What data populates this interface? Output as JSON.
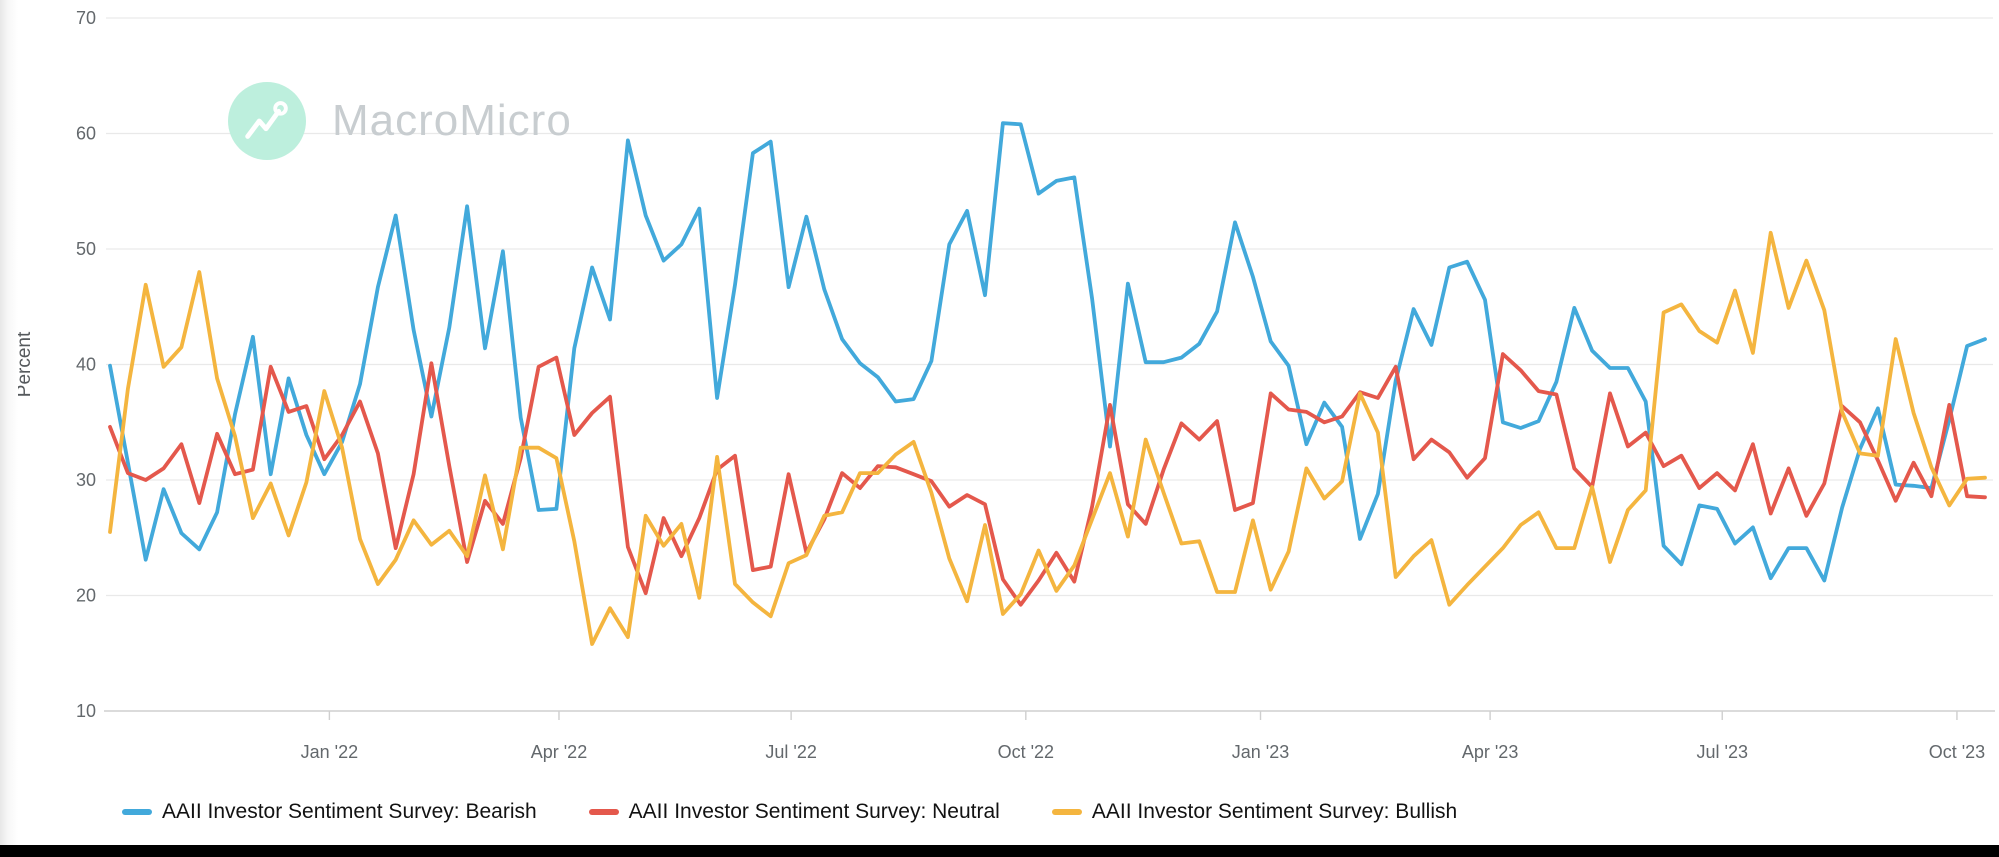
{
  "watermark": {
    "brand": "MacroMicro"
  },
  "y_axis": {
    "label": "Percent"
  },
  "chart_data": {
    "type": "line",
    "title": "AAII Investor Sentiment Survey",
    "ylabel": "Percent",
    "ylim": [
      10,
      70
    ],
    "yticks": [
      10,
      20,
      30,
      40,
      50,
      60,
      70
    ],
    "grid": "horizontal",
    "legend_position": "bottom",
    "xticks": [
      {
        "label": "Jan '22",
        "date": "2022-01-01"
      },
      {
        "label": "Apr '22",
        "date": "2022-04-01"
      },
      {
        "label": "Jul '22",
        "date": "2022-07-01"
      },
      {
        "label": "Oct '22",
        "date": "2022-10-01"
      },
      {
        "label": "Jan '23",
        "date": "2023-01-01"
      },
      {
        "label": "Apr '23",
        "date": "2023-04-01"
      },
      {
        "label": "Jul '23",
        "date": "2023-07-01"
      },
      {
        "label": "Oct '23",
        "date": "2023-10-01"
      }
    ],
    "x": [
      "2021-10-07",
      "2021-10-14",
      "2021-10-21",
      "2021-10-28",
      "2021-11-04",
      "2021-11-11",
      "2021-11-18",
      "2021-11-25",
      "2021-12-02",
      "2021-12-09",
      "2021-12-16",
      "2021-12-23",
      "2021-12-30",
      "2022-01-06",
      "2022-01-13",
      "2022-01-20",
      "2022-01-27",
      "2022-02-03",
      "2022-02-10",
      "2022-02-17",
      "2022-02-24",
      "2022-03-03",
      "2022-03-10",
      "2022-03-17",
      "2022-03-24",
      "2022-03-31",
      "2022-04-07",
      "2022-04-14",
      "2022-04-21",
      "2022-04-28",
      "2022-05-05",
      "2022-05-12",
      "2022-05-19",
      "2022-05-26",
      "2022-06-02",
      "2022-06-09",
      "2022-06-16",
      "2022-06-23",
      "2022-06-30",
      "2022-07-07",
      "2022-07-14",
      "2022-07-21",
      "2022-07-28",
      "2022-08-04",
      "2022-08-11",
      "2022-08-18",
      "2022-08-25",
      "2022-09-01",
      "2022-09-08",
      "2022-09-15",
      "2022-09-22",
      "2022-09-29",
      "2022-10-06",
      "2022-10-13",
      "2022-10-20",
      "2022-10-27",
      "2022-11-03",
      "2022-11-10",
      "2022-11-17",
      "2022-11-24",
      "2022-12-01",
      "2022-12-08",
      "2022-12-15",
      "2022-12-22",
      "2022-12-29",
      "2023-01-05",
      "2023-01-12",
      "2023-01-19",
      "2023-01-26",
      "2023-02-02",
      "2023-02-09",
      "2023-02-16",
      "2023-02-23",
      "2023-03-02",
      "2023-03-09",
      "2023-03-16",
      "2023-03-23",
      "2023-03-30",
      "2023-04-06",
      "2023-04-13",
      "2023-04-20",
      "2023-04-27",
      "2023-05-04",
      "2023-05-11",
      "2023-05-18",
      "2023-05-25",
      "2023-06-01",
      "2023-06-08",
      "2023-06-15",
      "2023-06-22",
      "2023-06-29",
      "2023-07-06",
      "2023-07-13",
      "2023-07-20",
      "2023-07-27",
      "2023-08-03",
      "2023-08-10",
      "2023-08-17",
      "2023-08-24",
      "2023-08-31",
      "2023-09-07",
      "2023-09-14",
      "2023-09-21",
      "2023-09-28",
      "2023-10-05",
      "2023-10-12"
    ],
    "series": [
      {
        "name": "AAII Investor Sentiment Survey: Bearish",
        "color": "#42a9db",
        "values": [
          39.9,
          31.5,
          23.1,
          29.2,
          25.4,
          24.0,
          27.2,
          35.7,
          42.4,
          30.5,
          38.8,
          33.9,
          30.5,
          33.3,
          38.3,
          46.7,
          52.9,
          43.0,
          35.5,
          43.2,
          53.7,
          41.4,
          49.8,
          35.4,
          27.4,
          27.5,
          41.4,
          48.4,
          43.9,
          59.4,
          52.9,
          49.0,
          50.4,
          53.5,
          37.1,
          46.9,
          58.3,
          59.3,
          46.7,
          52.8,
          46.5,
          42.2,
          40.1,
          38.9,
          36.8,
          37.0,
          40.3,
          50.4,
          53.3,
          46.0,
          60.9,
          60.8,
          54.8,
          55.9,
          56.2,
          45.7,
          32.9,
          47.0,
          40.2,
          40.2,
          40.6,
          41.8,
          44.6,
          52.3,
          47.6,
          42.0,
          39.9,
          33.1,
          36.7,
          34.6,
          24.9,
          28.8,
          38.6,
          44.8,
          41.7,
          48.4,
          48.9,
          45.6,
          35.0,
          34.5,
          35.1,
          38.5,
          44.9,
          41.2,
          39.7,
          39.7,
          36.8,
          24.3,
          22.7,
          27.8,
          27.5,
          24.5,
          25.9,
          21.5,
          24.1,
          24.1,
          21.3,
          27.6,
          32.7,
          36.2,
          29.6,
          29.5,
          29.3,
          35.2,
          41.6,
          42.2
        ]
      },
      {
        "name": "AAII Investor Sentiment Survey: Neutral",
        "color": "#e4584c",
        "values": [
          34.6,
          30.6,
          30.0,
          31.0,
          33.1,
          28.0,
          34.0,
          30.5,
          30.9,
          39.8,
          35.9,
          36.4,
          31.8,
          33.9,
          36.8,
          32.3,
          24.1,
          30.5,
          40.1,
          31.2,
          22.9,
          28.2,
          26.2,
          31.9,
          39.8,
          40.6,
          33.9,
          35.8,
          37.2,
          24.2,
          20.2,
          26.7,
          23.4,
          26.7,
          30.9,
          32.1,
          22.2,
          22.5,
          30.5,
          23.7,
          26.6,
          30.6,
          29.3,
          31.2,
          31.1,
          30.5,
          29.9,
          27.7,
          28.7,
          27.9,
          21.4,
          19.2,
          21.3,
          23.7,
          21.2,
          27.7,
          36.5,
          27.9,
          26.2,
          30.9,
          34.9,
          33.5,
          35.1,
          27.4,
          28.0,
          37.5,
          36.1,
          35.9,
          35.0,
          35.5,
          37.6,
          37.1,
          39.8,
          31.8,
          33.5,
          32.4,
          30.2,
          31.9,
          40.9,
          39.5,
          37.7,
          37.4,
          31.0,
          29.4,
          37.5,
          32.9,
          34.1,
          31.2,
          32.1,
          29.3,
          30.6,
          29.1,
          33.1,
          27.1,
          31.0,
          26.9,
          29.7,
          36.4,
          35.0,
          31.7,
          28.2,
          31.5,
          28.6,
          36.5,
          28.6,
          28.5
        ]
      },
      {
        "name": "AAII Investor Sentiment Survey: Bullish",
        "color": "#f4b53f",
        "values": [
          25.5,
          37.9,
          46.9,
          39.8,
          41.5,
          48.0,
          38.8,
          33.8,
          26.7,
          29.7,
          25.2,
          29.8,
          37.7,
          32.8,
          24.9,
          21.0,
          23.1,
          26.5,
          24.4,
          25.6,
          23.4,
          30.4,
          24.0,
          32.8,
          32.8,
          31.9,
          24.7,
          15.8,
          18.9,
          16.4,
          26.9,
          24.3,
          26.2,
          19.8,
          32.0,
          21.0,
          19.4,
          18.2,
          22.8,
          23.5,
          26.9,
          27.2,
          30.6,
          30.6,
          32.2,
          33.3,
          28.9,
          23.2,
          19.5,
          26.1,
          18.4,
          20.1,
          23.9,
          20.4,
          22.6,
          26.6,
          30.6,
          25.1,
          33.5,
          28.9,
          24.5,
          24.7,
          20.3,
          20.3,
          26.5,
          20.5,
          23.8,
          31.0,
          28.4,
          29.9,
          37.5,
          34.1,
          21.6,
          23.4,
          24.8,
          19.2,
          20.9,
          22.5,
          24.1,
          26.1,
          27.2,
          24.1,
          24.1,
          29.4,
          22.9,
          27.4,
          29.1,
          44.5,
          45.2,
          42.9,
          41.9,
          46.4,
          41.0,
          51.4,
          44.9,
          49.0,
          44.7,
          35.9,
          32.3,
          32.1,
          42.2,
          35.8,
          31.1,
          27.8,
          30.1,
          30.2
        ]
      }
    ]
  }
}
